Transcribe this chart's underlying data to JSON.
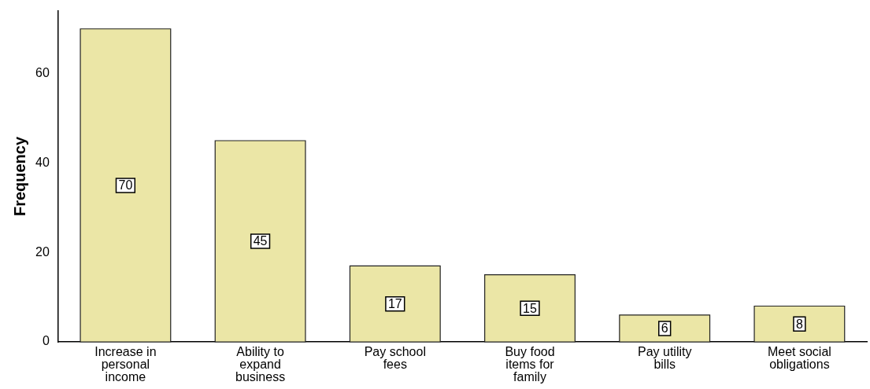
{
  "chart_data": {
    "type": "bar",
    "ylabel": "Frequency",
    "categories": [
      "Increase in personal income",
      "Ability to expand business",
      "Pay school fees",
      "Buy food items for family",
      "Pay utility bills",
      "Meet social obligations"
    ],
    "values": [
      70,
      45,
      17,
      15,
      6,
      8
    ],
    "color": "#ebe6a6",
    "ylim": [
      0,
      74
    ],
    "yticks": [
      0,
      20,
      40,
      60
    ],
    "grid": false,
    "legend": false,
    "data_labels": true
  }
}
